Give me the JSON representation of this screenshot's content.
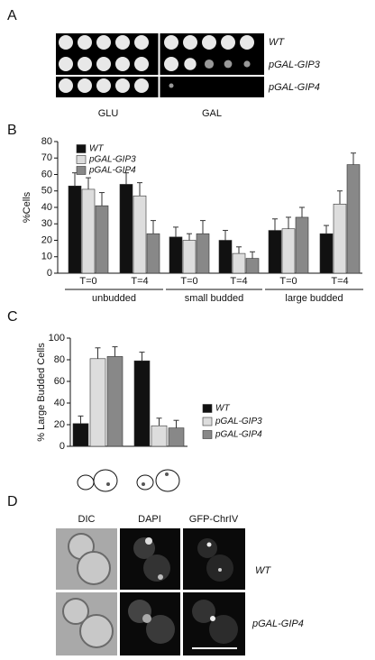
{
  "panels": [
    "A",
    "B",
    "C",
    "D"
  ],
  "plate": {
    "strains": [
      "WT",
      "pGAL-GIP3",
      "pGAL-GIP4"
    ],
    "conditions": [
      "GLU",
      "GAL"
    ]
  },
  "chart_data": [
    {
      "type": "bar",
      "ylabel": "%Cells",
      "categories": [
        "T=0",
        "T=4",
        "T=0",
        "T=4",
        "T=0",
        "T=4"
      ],
      "group_labels": [
        "unbudded",
        "small budded",
        "large budded"
      ],
      "ylim": [
        0,
        80
      ],
      "yticks": [
        0,
        10,
        20,
        30,
        40,
        50,
        60,
        70,
        80
      ],
      "series": [
        {
          "name": "WT",
          "color": "#111111",
          "values": [
            53,
            54,
            22,
            20,
            26,
            24
          ],
          "errors": [
            8,
            7,
            6,
            6,
            7,
            5
          ]
        },
        {
          "name": "pGAL-GIP3",
          "color": "#dddddd",
          "values": [
            51,
            47,
            20,
            12,
            27,
            42
          ],
          "errors": [
            7,
            8,
            4,
            4,
            7,
            8
          ]
        },
        {
          "name": "pGAL-GIP4",
          "color": "#888888",
          "values": [
            41,
            24,
            24,
            9,
            34,
            66
          ],
          "errors": [
            8,
            8,
            8,
            4,
            6,
            7
          ]
        }
      ]
    },
    {
      "type": "bar",
      "ylabel": "% Large Budded Cells",
      "categories": [
        null,
        null
      ],
      "ylim": [
        0,
        100
      ],
      "yticks": [
        0,
        20,
        40,
        60,
        80,
        100
      ],
      "series": [
        {
          "name": "WT",
          "color": "#111111",
          "values": [
            21,
            79
          ],
          "errors": [
            7,
            8
          ]
        },
        {
          "name": "pGAL-GIP3",
          "color": "#dddddd",
          "values": [
            81,
            19
          ],
          "errors": [
            10,
            7
          ]
        },
        {
          "name": "pGAL-GIP4",
          "color": "#888888",
          "values": [
            83,
            17
          ],
          "errors": [
            9,
            7
          ]
        }
      ]
    }
  ],
  "microscopy": {
    "channels": [
      "DIC",
      "DAPI",
      "GFP-ChrIV"
    ],
    "strains": [
      "WT",
      "pGAL-GIP4"
    ]
  }
}
